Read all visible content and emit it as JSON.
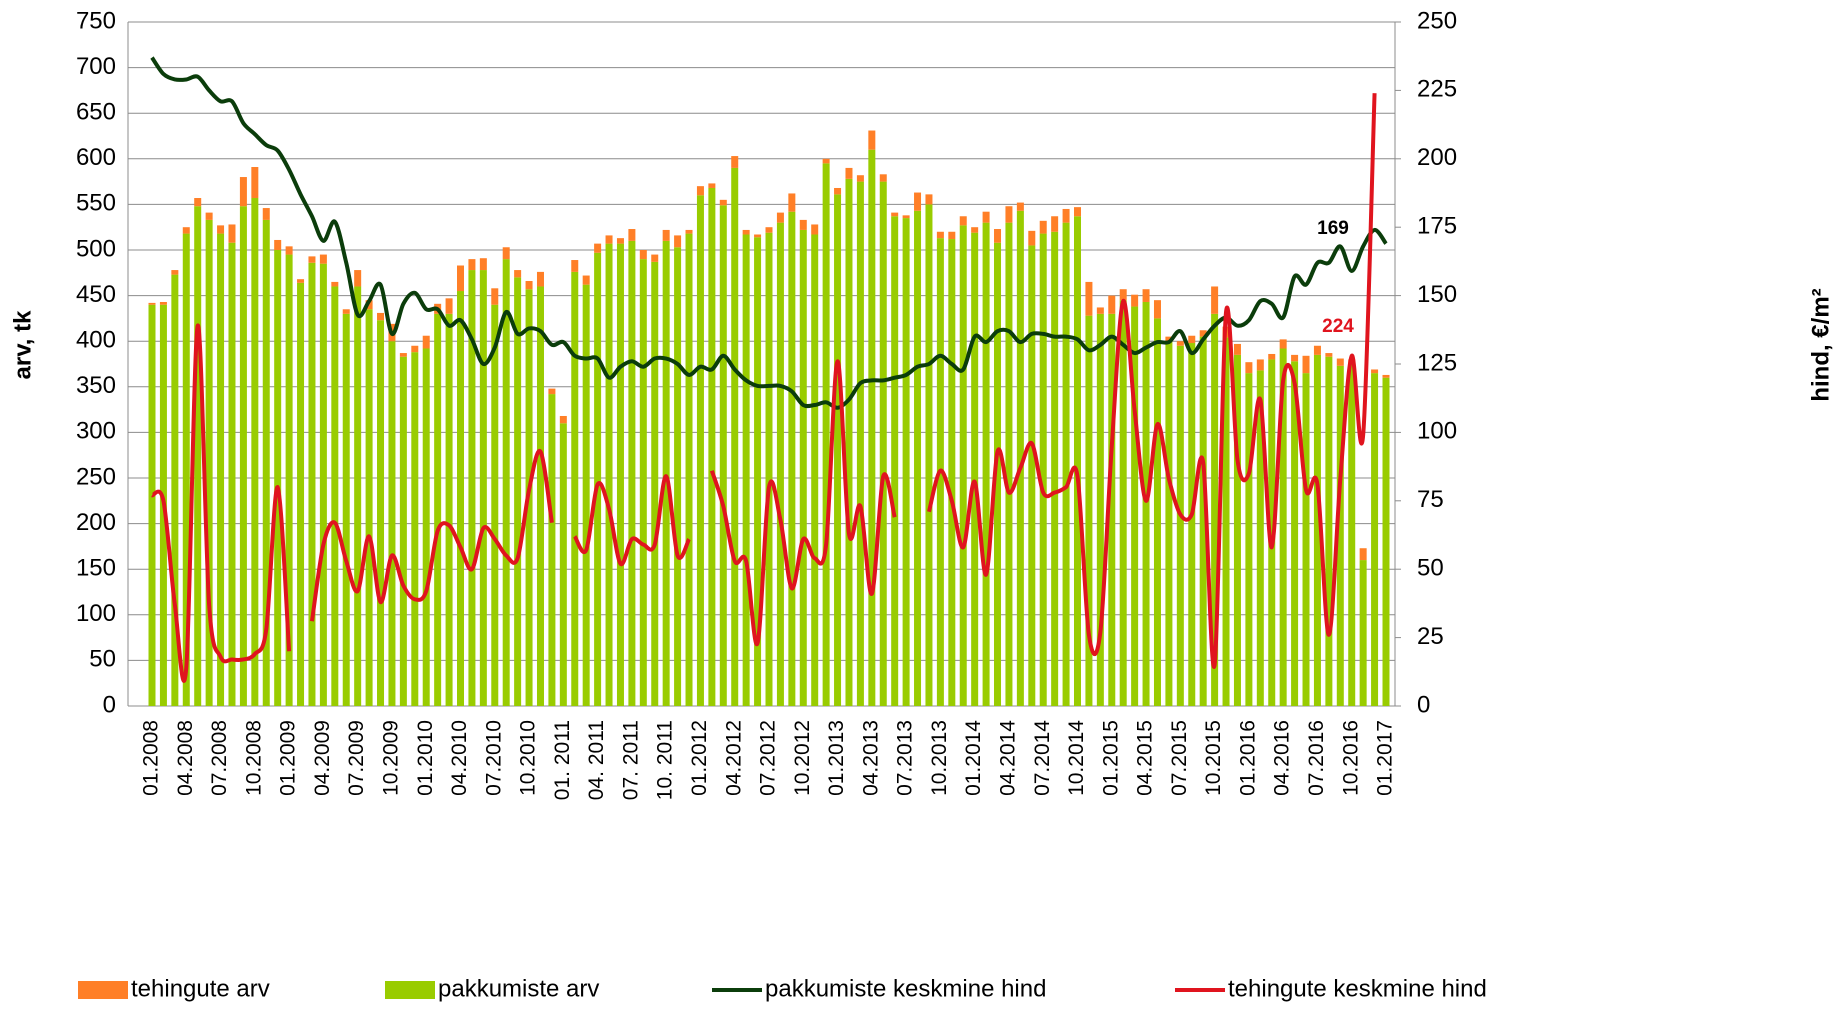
{
  "chart_data": {
    "type": "bar_line_combo",
    "ylabel": "arv, tk",
    "y2label": "hind, €/m²",
    "categories": [
      "01.2008",
      null,
      null,
      "04.2008",
      null,
      null,
      "07.2008",
      null,
      null,
      "10.2008",
      null,
      null,
      "01.2009",
      null,
      null,
      "04.2009",
      null,
      null,
      "07.2009",
      null,
      null,
      "10.2009",
      null,
      null,
      "01.2010",
      null,
      null,
      "04.2010",
      null,
      null,
      "07.2010",
      null,
      null,
      "10.2010",
      null,
      null,
      "01. 2011",
      null,
      null,
      "04. 2011",
      null,
      null,
      "07. 2011",
      null,
      null,
      "10. 2011",
      null,
      null,
      "01.2012",
      null,
      null,
      "04.2012",
      null,
      null,
      "07.2012",
      null,
      null,
      "10.2012",
      null,
      null,
      "01.2013",
      null,
      null,
      "04.2013",
      null,
      null,
      "07.2013",
      null,
      null,
      "10.2013",
      null,
      null,
      "01.2014",
      null,
      null,
      "04.2014",
      null,
      null,
      "07.2014",
      null,
      null,
      "10.2014",
      null,
      null,
      "01.2015",
      null,
      null,
      "04.2015",
      null,
      null,
      "07.2015",
      null,
      null,
      "10.2015",
      null,
      null,
      "01.2016",
      null,
      null,
      "04.2016",
      null,
      null,
      "07.2016",
      null,
      null,
      "10.2016",
      null,
      null,
      "01.2017"
    ],
    "series": [
      {
        "name": "tehingute arv",
        "type": "bar",
        "stack": true,
        "color": "#ff7f27",
        "values": [
          2,
          3,
          5,
          7,
          9,
          8,
          9,
          20,
          32,
          34,
          13,
          11,
          9,
          4,
          7,
          10,
          5,
          5,
          18,
          10,
          8,
          19,
          4,
          7,
          14,
          11,
          17,
          28,
          12,
          13,
          18,
          13,
          8,
          9,
          16,
          6,
          8,
          13,
          10,
          10,
          9,
          6,
          13,
          10,
          8,
          12,
          13,
          4,
          10,
          5,
          6,
          13,
          5,
          3,
          6,
          11,
          20,
          11,
          11,
          5,
          7,
          12,
          7,
          21,
          8,
          4,
          3,
          20,
          11,
          7,
          8,
          10,
          6,
          12,
          15,
          18,
          9,
          16,
          14,
          17,
          15,
          10,
          37,
          7,
          20,
          12,
          13,
          14,
          20,
          5,
          5,
          8,
          7,
          30,
          12,
          12,
          12,
          12,
          6,
          10,
          7,
          19,
          10,
          4,
          8,
          5,
          13,
          4,
          3
        ]
      },
      {
        "name": "pakkumiste arv",
        "type": "bar",
        "stack": true,
        "color": "#99cc00",
        "values": [
          440,
          440,
          473,
          518,
          548,
          533,
          518,
          508,
          548,
          557,
          533,
          500,
          495,
          464,
          486,
          485,
          460,
          430,
          460,
          435,
          423,
          400,
          383,
          388,
          392,
          430,
          430,
          455,
          478,
          478,
          440,
          490,
          470,
          457,
          460,
          342,
          310,
          476,
          462,
          497,
          507,
          507,
          510,
          490,
          487,
          510,
          503,
          518,
          560,
          568,
          549,
          590,
          517,
          514,
          519,
          530,
          542,
          522,
          517,
          595,
          561,
          578,
          575,
          610,
          575,
          537,
          535,
          543,
          550,
          513,
          512,
          527,
          519,
          530,
          508,
          530,
          543,
          505,
          518,
          520,
          530,
          537,
          428,
          430,
          430,
          445,
          438,
          443,
          425,
          400,
          395,
          398,
          405,
          430,
          404,
          385,
          365,
          368,
          380,
          392,
          378,
          365,
          385,
          383,
          373,
          375,
          160,
          365,
          360
        ]
      },
      {
        "name": "pakkumiste keskmine hind",
        "type": "line",
        "axis": "y2",
        "color": "#0b3d0b",
        "values": [
          237,
          231,
          229,
          229,
          230,
          225,
          221,
          221,
          213,
          209,
          205,
          203,
          196,
          187,
          179,
          170,
          177,
          162,
          143,
          148,
          154,
          136,
          147,
          151,
          145,
          145,
          139,
          141,
          134,
          125,
          131,
          144,
          136,
          138,
          137,
          132,
          133,
          128,
          127,
          127,
          120,
          124,
          126,
          124,
          127,
          127,
          125,
          121,
          124,
          123,
          128,
          123,
          119,
          117,
          117,
          117,
          115,
          110,
          110,
          111,
          109,
          112,
          118,
          119,
          119,
          120,
          121,
          124,
          125,
          128,
          125,
          123,
          135,
          133,
          137,
          137,
          133,
          136,
          136,
          135,
          135,
          134,
          130,
          132,
          135,
          132,
          129,
          131,
          133,
          133,
          137,
          129,
          134,
          139,
          142,
          139,
          141,
          148,
          147,
          142,
          157,
          154,
          162,
          162,
          168,
          159,
          168,
          174,
          169
        ]
      },
      {
        "name": "tehingute keskmine hind",
        "type": "line",
        "axis": "y2",
        "color": "#e0141e",
        "values": [
          77,
          75,
          37,
          14,
          139,
          37,
          18,
          17,
          17,
          19,
          28,
          80,
          20,
          null,
          31,
          59,
          67,
          53,
          42,
          62,
          38,
          55,
          44,
          39,
          42,
          64,
          66,
          58,
          50,
          65,
          61,
          55,
          54,
          79,
          93,
          67,
          null,
          62,
          57,
          81,
          72,
          52,
          61,
          59,
          59,
          84,
          55,
          61,
          null,
          86,
          73,
          53,
          53,
          23,
          80,
          68,
          43,
          61,
          54,
          59,
          126,
          63,
          73,
          41,
          84,
          69,
          null,
          null,
          71,
          86,
          75,
          58,
          82,
          48,
          93,
          78,
          87,
          96,
          78,
          78,
          80,
          84,
          26,
          27,
          95,
          148,
          108,
          75,
          103,
          83,
          70,
          70,
          89,
          15,
          144,
          90,
          85,
          112,
          58,
          119,
          118,
          79,
          81,
          26,
          83,
          128,
          99,
          224,
          null
        ]
      }
    ],
    "annotations": [
      "169",
      "224"
    ],
    "ylim": [
      0,
      750
    ],
    "yticks": [
      0,
      50,
      100,
      150,
      200,
      250,
      300,
      350,
      400,
      450,
      500,
      550,
      600,
      650,
      700,
      750
    ],
    "y2lim": [
      0,
      250
    ],
    "y2ticks": [
      0,
      25,
      50,
      75,
      100,
      125,
      150,
      175,
      200,
      225,
      250
    ],
    "grid": true,
    "legend": "bottom"
  }
}
